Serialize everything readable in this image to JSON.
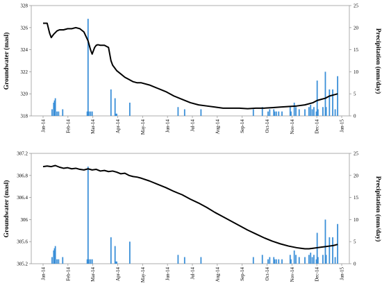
{
  "chart_data": [
    {
      "type": "line+bar",
      "ylabel": "Groundwater (masl)",
      "y2label": "Precipitation (mm/day)",
      "ylim": [
        318,
        328
      ],
      "y2lim": [
        0,
        25
      ],
      "yticks": [
        "318",
        "320",
        "322",
        "324",
        "326",
        "328"
      ],
      "y2ticks": [
        "0",
        "5",
        "10",
        "15",
        "20",
        "25"
      ],
      "xticks": [
        "Jan-14",
        "Feb-14",
        "Mar-14",
        "Apr-14",
        "May-14",
        "Jun-14",
        "Jul-14",
        "Aug-14",
        "Sep-14",
        "Oct-14",
        "Nov-14",
        "Dec-14",
        "Jan-15"
      ],
      "colors": {
        "groundwater": "#000000",
        "precipitation": "#3a8fd8"
      },
      "groundwater": {
        "x": [
          0,
          5,
          8,
          10,
          13,
          17,
          20,
          25,
          30,
          35,
          40,
          45,
          50,
          55,
          58,
          60,
          63,
          65,
          67,
          70,
          75,
          80,
          83,
          85,
          88,
          90,
          95,
          100,
          105,
          110,
          115,
          120,
          130,
          140,
          150,
          160,
          170,
          180,
          190,
          200,
          210,
          220,
          230,
          240,
          250,
          260,
          270,
          280,
          290,
          300,
          310,
          320,
          330,
          335,
          340,
          345,
          350,
          355,
          360
        ],
        "y": [
          326.4,
          326.4,
          325.5,
          325.1,
          325.4,
          325.7,
          325.8,
          325.8,
          325.9,
          325.9,
          326.0,
          325.9,
          325.6,
          324.8,
          324.0,
          323.6,
          324.2,
          324.4,
          324.45,
          324.4,
          324.4,
          324.2,
          323.0,
          322.6,
          322.3,
          322.1,
          321.8,
          321.5,
          321.3,
          321.1,
          321.0,
          321.0,
          320.8,
          320.5,
          320.2,
          319.8,
          319.5,
          319.2,
          319.0,
          318.9,
          318.8,
          318.7,
          318.7,
          318.7,
          318.65,
          318.7,
          318.7,
          318.75,
          318.8,
          318.85,
          318.9,
          319.0,
          319.2,
          319.4,
          319.5,
          319.6,
          319.8,
          319.9,
          320.0
        ]
      },
      "precipitation": {
        "x": [
          11,
          13,
          14,
          15,
          17,
          19,
          24,
          54,
          55,
          56,
          58,
          60,
          83,
          88,
          89,
          90,
          106,
          165,
          173,
          193,
          257,
          268,
          275,
          277,
          282,
          283,
          285,
          288,
          292,
          302,
          303,
          307,
          309,
          313,
          320,
          325,
          327,
          329,
          331,
          334,
          335,
          336,
          342,
          345,
          346,
          350,
          354,
          357,
          360
        ],
        "y": [
          1.5,
          3,
          3.5,
          4,
          1,
          1,
          1.5,
          1,
          22,
          1,
          1,
          1,
          6,
          4,
          0.5,
          0.5,
          3,
          2,
          1.5,
          1.5,
          1.5,
          2,
          1,
          1.5,
          1.5,
          1,
          1,
          1,
          1,
          2,
          1,
          3,
          2,
          1.5,
          1.5,
          2,
          2.5,
          1.5,
          2,
          1,
          8,
          1.5,
          2,
          10,
          2,
          6,
          6,
          1.5,
          9
        ]
      }
    },
    {
      "type": "line+bar",
      "ylabel": "Groundwater (masl)",
      "y2label": "Precipitation (mm/day)",
      "ylim": [
        305.2,
        307.2
      ],
      "y2lim": [
        0,
        25
      ],
      "yticks": [
        "305.2",
        "305.6",
        "306",
        "306.4",
        "306.8",
        "307.2"
      ],
      "y2ticks": [
        "0",
        "5",
        "10",
        "15",
        "20",
        "25"
      ],
      "xticks": [
        "Jan-14",
        "Feb-14",
        "Mar-14",
        "Apr-14",
        "May-14",
        "Jun-14",
        "Jul-14",
        "Aug-14",
        "Sep-14",
        "Oct-14",
        "Nov-14",
        "Dec-14",
        "Jan-15"
      ],
      "colors": {
        "groundwater": "#000000",
        "precipitation": "#3a8fd8"
      },
      "groundwater": {
        "x": [
          0,
          5,
          10,
          15,
          20,
          25,
          30,
          35,
          40,
          45,
          50,
          55,
          60,
          65,
          70,
          75,
          80,
          85,
          90,
          95,
          100,
          105,
          110,
          115,
          120,
          130,
          140,
          150,
          160,
          170,
          180,
          190,
          200,
          210,
          220,
          230,
          240,
          250,
          260,
          270,
          280,
          290,
          300,
          310,
          315,
          320,
          325,
          330,
          335,
          340,
          345,
          350,
          355,
          360
        ],
        "y": [
          306.96,
          306.97,
          306.96,
          306.98,
          306.95,
          306.93,
          306.94,
          306.92,
          306.93,
          306.91,
          306.9,
          306.92,
          306.9,
          306.91,
          306.88,
          306.89,
          306.87,
          306.88,
          306.86,
          306.83,
          306.84,
          306.8,
          306.78,
          306.77,
          306.75,
          306.7,
          306.64,
          306.58,
          306.51,
          306.45,
          306.37,
          306.3,
          306.22,
          306.13,
          306.05,
          305.97,
          305.89,
          305.81,
          305.74,
          305.67,
          305.61,
          305.56,
          305.52,
          305.49,
          305.48,
          305.47,
          305.47,
          305.48,
          305.49,
          305.5,
          305.51,
          305.52,
          305.53,
          305.55
        ]
      },
      "precipitation": {
        "x": [
          11,
          13,
          14,
          15,
          17,
          19,
          24,
          54,
          55,
          56,
          58,
          60,
          83,
          88,
          89,
          90,
          106,
          165,
          173,
          193,
          257,
          268,
          275,
          277,
          282,
          283,
          285,
          288,
          292,
          302,
          303,
          307,
          309,
          313,
          320,
          325,
          327,
          329,
          331,
          334,
          335,
          336,
          342,
          345,
          346,
          350,
          354,
          357,
          360
        ],
        "y": [
          1.5,
          3,
          3.5,
          4,
          1,
          1,
          1.5,
          1,
          22,
          1,
          1,
          1,
          6,
          4,
          0.5,
          0.5,
          5,
          2,
          1.5,
          1.5,
          1.5,
          2,
          1,
          1.5,
          1.5,
          1,
          1,
          1,
          1,
          2,
          1,
          3,
          2,
          1.5,
          1.5,
          2,
          2.5,
          1.5,
          2,
          1,
          7,
          1.5,
          2,
          10,
          2,
          6,
          6,
          1.5,
          9
        ]
      }
    }
  ]
}
